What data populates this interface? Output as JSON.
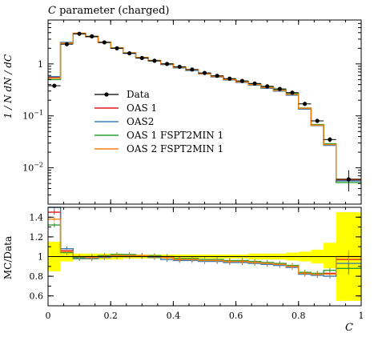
{
  "chart_data": {
    "type": "line",
    "title": "C parameter (charged)",
    "title_italic_symbol": "C",
    "title_rest": " parameter (charged)",
    "ylabel_top": "1 / N dN / dC",
    "ylabel_bottom": "MC/Data",
    "xlabel": "C",
    "xlim": [
      0,
      1
    ],
    "ylim_top": [
      0.002,
      7
    ],
    "ylim_bottom": [
      0.5,
      1.5
    ],
    "yscale_top": "log",
    "x_ticks": [
      {
        "value": 0,
        "label": "0"
      },
      {
        "value": 0.2,
        "label": "0.2"
      },
      {
        "value": 0.4,
        "label": "0.4"
      },
      {
        "value": 0.6,
        "label": "0.6"
      },
      {
        "value": 0.8,
        "label": "0.8"
      },
      {
        "value": 1,
        "label": "1"
      }
    ],
    "y_ticks_top": [
      {
        "value": 1,
        "label": "1"
      },
      {
        "value": 0.1,
        "label": "10^-1",
        "base": "10",
        "exp": "−1"
      },
      {
        "value": 0.01,
        "label": "10^-2",
        "base": "10",
        "exp": "−2"
      }
    ],
    "y_ticks_bottom": [
      {
        "value": 0.6,
        "label": "0.6"
      },
      {
        "value": 0.8,
        "label": "0.8"
      },
      {
        "value": 1.0,
        "label": "1"
      },
      {
        "value": 1.2,
        "label": "1.2"
      },
      {
        "value": 1.4,
        "label": "1.4"
      }
    ],
    "legend_position": "center-left",
    "bin_edges": [
      0,
      0.04,
      0.08,
      0.12,
      0.16,
      0.2,
      0.24,
      0.28,
      0.32,
      0.36,
      0.4,
      0.44,
      0.48,
      0.52,
      0.56,
      0.6,
      0.64,
      0.68,
      0.72,
      0.76,
      0.8,
      0.84,
      0.88,
      0.92,
      1.0
    ],
    "data": {
      "name": "Data",
      "color": "#000000",
      "values": [
        0.38,
        2.4,
        3.8,
        3.4,
        2.6,
        2.0,
        1.6,
        1.3,
        1.15,
        1.0,
        0.88,
        0.78,
        0.67,
        0.59,
        0.52,
        0.47,
        0.42,
        0.37,
        0.33,
        0.28,
        0.17,
        0.08,
        0.035,
        0.006
      ],
      "err_low": [
        0.03,
        0.1,
        0.1,
        0.1,
        0.08,
        0.06,
        0.05,
        0.04,
        0.04,
        0.03,
        0.03,
        0.02,
        0.02,
        0.02,
        0.02,
        0.015,
        0.015,
        0.012,
        0.012,
        0.01,
        0.01,
        0.006,
        0.004,
        0.0025
      ],
      "err_high": [
        0.03,
        0.1,
        0.1,
        0.1,
        0.08,
        0.06,
        0.05,
        0.04,
        0.04,
        0.03,
        0.03,
        0.02,
        0.02,
        0.02,
        0.02,
        0.015,
        0.015,
        0.012,
        0.012,
        0.01,
        0.01,
        0.006,
        0.004,
        0.003
      ]
    },
    "series": [
      {
        "name": "OAS 1",
        "color": "#e41a1c",
        "values": [
          0.55,
          2.55,
          3.85,
          3.35,
          2.6,
          2.02,
          1.62,
          1.32,
          1.16,
          0.99,
          0.85,
          0.76,
          0.65,
          0.57,
          0.5,
          0.45,
          0.4,
          0.35,
          0.31,
          0.26,
          0.14,
          0.067,
          0.028,
          0.0058
        ],
        "ratio": [
          1.45,
          1.06,
          0.99,
          0.99,
          1.0,
          1.01,
          1.01,
          1.01,
          1.0,
          0.99,
          0.97,
          0.97,
          0.96,
          0.96,
          0.95,
          0.95,
          0.94,
          0.93,
          0.92,
          0.9,
          0.83,
          0.82,
          0.83,
          0.97
        ]
      },
      {
        "name": "OAS2",
        "color": "#377eb8",
        "values": [
          0.57,
          2.6,
          3.8,
          3.3,
          2.58,
          2.0,
          1.6,
          1.3,
          1.14,
          0.97,
          0.84,
          0.75,
          0.64,
          0.56,
          0.49,
          0.44,
          0.39,
          0.34,
          0.3,
          0.25,
          0.135,
          0.065,
          0.027,
          0.0056
        ],
        "ratio": [
          1.5,
          1.08,
          0.98,
          0.98,
          0.99,
          1.0,
          1.0,
          1.0,
          0.99,
          0.97,
          0.96,
          0.96,
          0.95,
          0.95,
          0.94,
          0.94,
          0.93,
          0.92,
          0.91,
          0.89,
          0.82,
          0.81,
          0.8,
          0.93
        ]
      },
      {
        "name": "OAS 1 FSPT2MIN 1",
        "color": "#2ca02c",
        "values": [
          0.5,
          2.5,
          3.82,
          3.38,
          2.62,
          2.04,
          1.64,
          1.33,
          1.17,
          1.0,
          0.86,
          0.77,
          0.66,
          0.58,
          0.51,
          0.46,
          0.41,
          0.36,
          0.32,
          0.27,
          0.142,
          0.068,
          0.029,
          0.0052
        ],
        "ratio": [
          1.32,
          1.04,
          0.99,
          1.0,
          1.01,
          1.02,
          1.02,
          1.01,
          1.01,
          1.0,
          0.98,
          0.98,
          0.97,
          0.97,
          0.96,
          0.96,
          0.95,
          0.94,
          0.93,
          0.91,
          0.84,
          0.83,
          0.86,
          0.88
        ]
      },
      {
        "name": "OAS 2 FSPT2MIN 1",
        "color": "#ff7f0e",
        "values": [
          0.53,
          2.52,
          3.9,
          3.36,
          2.61,
          2.03,
          1.63,
          1.32,
          1.16,
          0.99,
          0.86,
          0.77,
          0.65,
          0.57,
          0.5,
          0.45,
          0.4,
          0.35,
          0.31,
          0.26,
          0.14,
          0.066,
          0.028,
          0.006
        ],
        "ratio": [
          1.38,
          1.05,
          1.0,
          0.99,
          1.0,
          1.01,
          1.01,
          1.01,
          1.0,
          0.99,
          0.97,
          0.97,
          0.96,
          0.96,
          0.95,
          0.95,
          0.94,
          0.93,
          0.92,
          0.9,
          0.83,
          0.82,
          0.82,
          1.0
        ]
      }
    ],
    "ratio_band": {
      "color": "#ffff00",
      "low": [
        0.85,
        0.95,
        0.97,
        0.97,
        0.97,
        0.97,
        0.98,
        0.98,
        0.98,
        0.98,
        0.98,
        0.98,
        0.98,
        0.98,
        0.98,
        0.98,
        0.97,
        0.97,
        0.97,
        0.96,
        0.95,
        0.93,
        0.88,
        0.55
      ],
      "high": [
        1.15,
        1.05,
        1.03,
        1.03,
        1.03,
        1.03,
        1.02,
        1.02,
        1.02,
        1.02,
        1.02,
        1.02,
        1.02,
        1.02,
        1.02,
        1.02,
        1.03,
        1.03,
        1.03,
        1.04,
        1.05,
        1.07,
        1.14,
        1.45
      ]
    }
  }
}
